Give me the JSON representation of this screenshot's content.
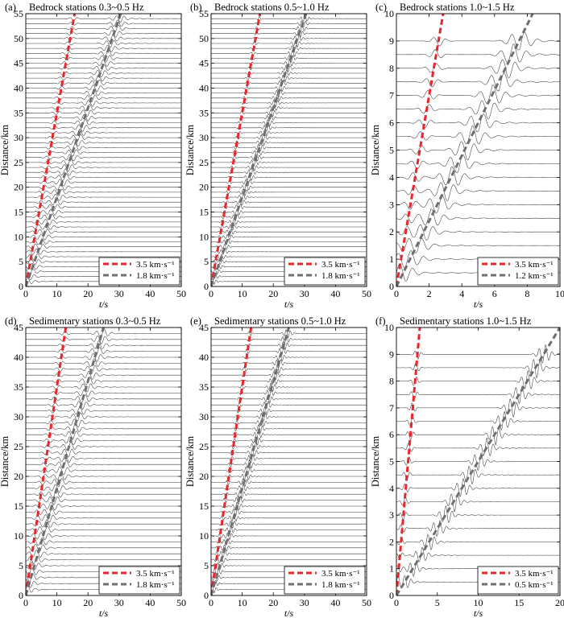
{
  "chart_data": [
    {
      "type": "line",
      "panel_label": "(a)",
      "title": "Bedrock stations 0.3~0.5 Hz",
      "xlabel": "t/s",
      "ylabel": "Distance/km",
      "xlim": [
        0,
        50
      ],
      "ylim": [
        0,
        55
      ],
      "xticks": [
        0,
        10,
        20,
        30,
        40,
        50
      ],
      "yticks": [
        0,
        5,
        10,
        15,
        20,
        25,
        30,
        35,
        40,
        45,
        50,
        55
      ],
      "traces": {
        "first_km": 1,
        "spacing_km": 1,
        "count": 54,
        "freq_hz": 0.4
      },
      "legend_position": "lower-right",
      "series": [
        {
          "name": "3.5 km·s⁻¹",
          "velocity_km_s": 3.5,
          "color": "#e8262b",
          "style": "dashed"
        },
        {
          "name": "1.8 km·s⁻¹",
          "velocity_km_s": 1.8,
          "color": "#6f6f6f",
          "style": "dashed"
        }
      ]
    },
    {
      "type": "line",
      "panel_label": "(b)",
      "title": "Bedrock stations 0.5~1.0 Hz",
      "xlabel": "t/s",
      "ylabel": "Distance/km",
      "xlim": [
        0,
        50
      ],
      "ylim": [
        0,
        55
      ],
      "xticks": [
        0,
        10,
        20,
        30,
        40,
        50
      ],
      "yticks": [
        0,
        5,
        10,
        15,
        20,
        25,
        30,
        35,
        40,
        45,
        50,
        55
      ],
      "traces": {
        "first_km": 1,
        "spacing_km": 1,
        "count": 54,
        "freq_hz": 0.75
      },
      "legend_position": "lower-right",
      "series": [
        {
          "name": "3.5 km·s⁻¹",
          "velocity_km_s": 3.5,
          "color": "#e8262b",
          "style": "dashed"
        },
        {
          "name": "1.8 km·s⁻¹",
          "velocity_km_s": 1.8,
          "color": "#6f6f6f",
          "style": "dashed"
        }
      ]
    },
    {
      "type": "line",
      "panel_label": "(c)",
      "title": "Bedrock stations 1.0~1.5 Hz",
      "xlabel": "t/s",
      "ylabel": "Distance/km",
      "xlim": [
        0,
        10
      ],
      "ylim": [
        0,
        10
      ],
      "xticks": [
        0,
        2,
        4,
        6,
        8,
        10
      ],
      "yticks": [
        0,
        1,
        2,
        3,
        4,
        5,
        6,
        7,
        8,
        9,
        10
      ],
      "traces": {
        "first_km": 0.5,
        "spacing_km": 0.5,
        "count": 18,
        "freq_hz": 1.25
      },
      "legend_position": "lower-right",
      "series": [
        {
          "name": "3.5 km·s⁻¹",
          "velocity_km_s": 3.5,
          "color": "#e8262b",
          "style": "dashed"
        },
        {
          "name": "1.2 km·s⁻¹",
          "velocity_km_s": 1.2,
          "color": "#6f6f6f",
          "style": "dashed"
        }
      ]
    },
    {
      "type": "line",
      "panel_label": "(d)",
      "title": "Sedimentary stations 0.3~0.5 Hz",
      "xlabel": "t/s",
      "ylabel": "Distance/km",
      "xlim": [
        0,
        50
      ],
      "ylim": [
        0,
        45
      ],
      "xticks": [
        0,
        10,
        20,
        30,
        40,
        50
      ],
      "yticks": [
        0,
        5,
        10,
        15,
        20,
        25,
        30,
        35,
        40,
        45
      ],
      "traces": {
        "first_km": 1,
        "spacing_km": 1,
        "count": 44,
        "freq_hz": 0.4
      },
      "legend_position": "lower-right",
      "series": [
        {
          "name": "3.5 km·s⁻¹",
          "velocity_km_s": 3.5,
          "color": "#e8262b",
          "style": "dashed"
        },
        {
          "name": "1.8 km·s⁻¹",
          "velocity_km_s": 1.8,
          "color": "#6f6f6f",
          "style": "dashed"
        }
      ]
    },
    {
      "type": "line",
      "panel_label": "(e)",
      "title": "Sedimentary stations 0.5~1.0 Hz",
      "xlabel": "t/s",
      "ylabel": "Distance/km",
      "xlim": [
        0,
        50
      ],
      "ylim": [
        0,
        45
      ],
      "xticks": [
        0,
        10,
        20,
        30,
        40,
        50
      ],
      "yticks": [
        0,
        5,
        10,
        15,
        20,
        25,
        30,
        35,
        40,
        45
      ],
      "traces": {
        "first_km": 1,
        "spacing_km": 1,
        "count": 44,
        "freq_hz": 0.75
      },
      "legend_position": "lower-right",
      "series": [
        {
          "name": "3.5 km·s⁻¹",
          "velocity_km_s": 3.5,
          "color": "#e8262b",
          "style": "dashed"
        },
        {
          "name": "1.8 km·s⁻¹",
          "velocity_km_s": 1.8,
          "color": "#6f6f6f",
          "style": "dashed"
        }
      ]
    },
    {
      "type": "line",
      "panel_label": "(f)",
      "title": "Sedimentary stations 1.0~1.5 Hz",
      "xlabel": "t/s",
      "ylabel": "Distance/km",
      "xlim": [
        0,
        20
      ],
      "ylim": [
        0,
        10
      ],
      "xticks": [
        0,
        5,
        10,
        15,
        20
      ],
      "yticks": [
        0,
        1,
        2,
        3,
        4,
        5,
        6,
        7,
        8,
        9,
        10
      ],
      "traces": {
        "first_km": 0.5,
        "spacing_km": 0.5,
        "count": 18,
        "freq_hz": 1.25
      },
      "legend_position": "lower-right",
      "series": [
        {
          "name": "3.5 km·s⁻¹",
          "velocity_km_s": 3.5,
          "color": "#e8262b",
          "style": "dashed"
        },
        {
          "name": "0.5 km·s⁻¹",
          "velocity_km_s": 0.5,
          "color": "#6f6f6f",
          "style": "dashed"
        }
      ]
    }
  ]
}
